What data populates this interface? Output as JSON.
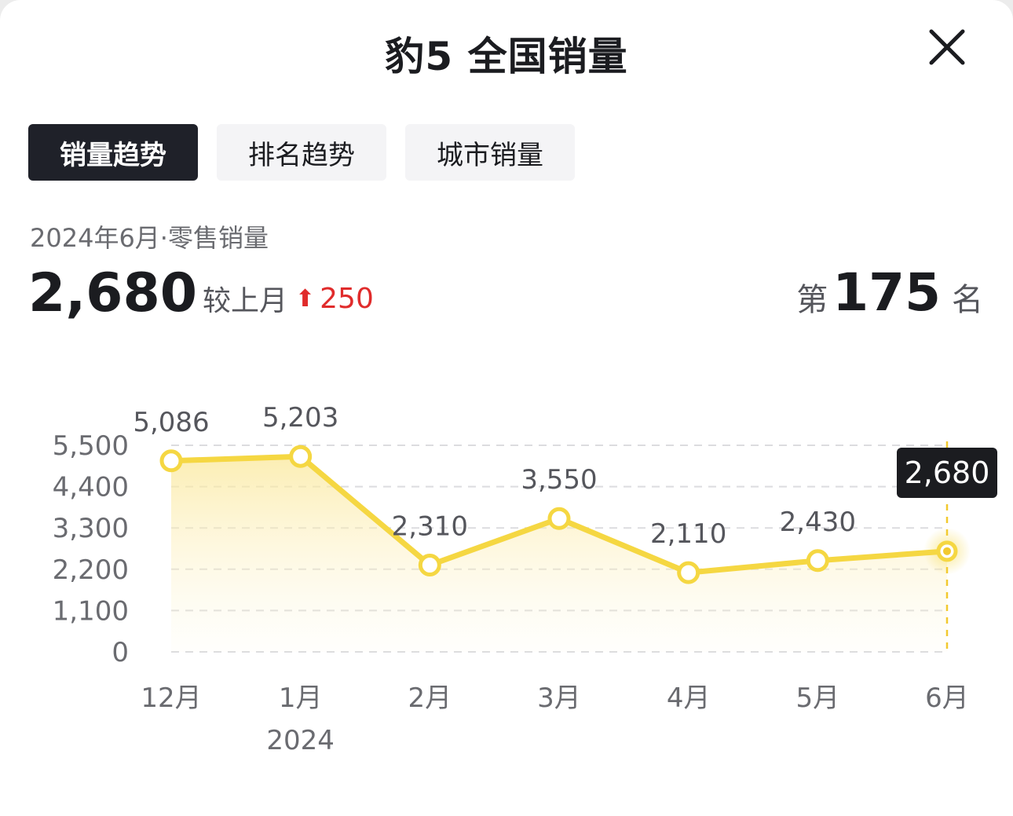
{
  "header": {
    "title": "豹5 全国销量",
    "close_icon": "close-icon"
  },
  "tabs": [
    {
      "label": "销量趋势",
      "active": true
    },
    {
      "label": "排名趋势",
      "active": false
    },
    {
      "label": "城市销量",
      "active": false
    }
  ],
  "summary": {
    "subtitle": "2024年6月·零售销量",
    "value": "2,680",
    "mom_label": "较上月",
    "mom_arrow": "⬆",
    "mom_delta": "250",
    "rank_prefix": "第",
    "rank_value": "175",
    "rank_suffix": "名"
  },
  "colors": {
    "accent": "#f5d742",
    "marker_stroke": "#f2c92e",
    "up": "#e02b2b",
    "active_tab": "#1f2129"
  },
  "chart_data": {
    "type": "line",
    "x": [
      "12月",
      "1月",
      "2月",
      "3月",
      "4月",
      "5月",
      "6月"
    ],
    "x_sublabels": [
      "",
      "2024",
      "",
      "",
      "",
      "",
      ""
    ],
    "values": [
      5086,
      5203,
      2310,
      3550,
      2110,
      2430,
      2680
    ],
    "value_labels": [
      "5,086",
      "5,203",
      "2,310",
      "3,550",
      "2,110",
      "2,430",
      "2,680"
    ],
    "yticks": [
      "0",
      "1,100",
      "2,200",
      "3,300",
      "4,400",
      "5,500"
    ],
    "ylim": [
      0,
      5500
    ],
    "highlight_index": 6,
    "grid": true
  }
}
